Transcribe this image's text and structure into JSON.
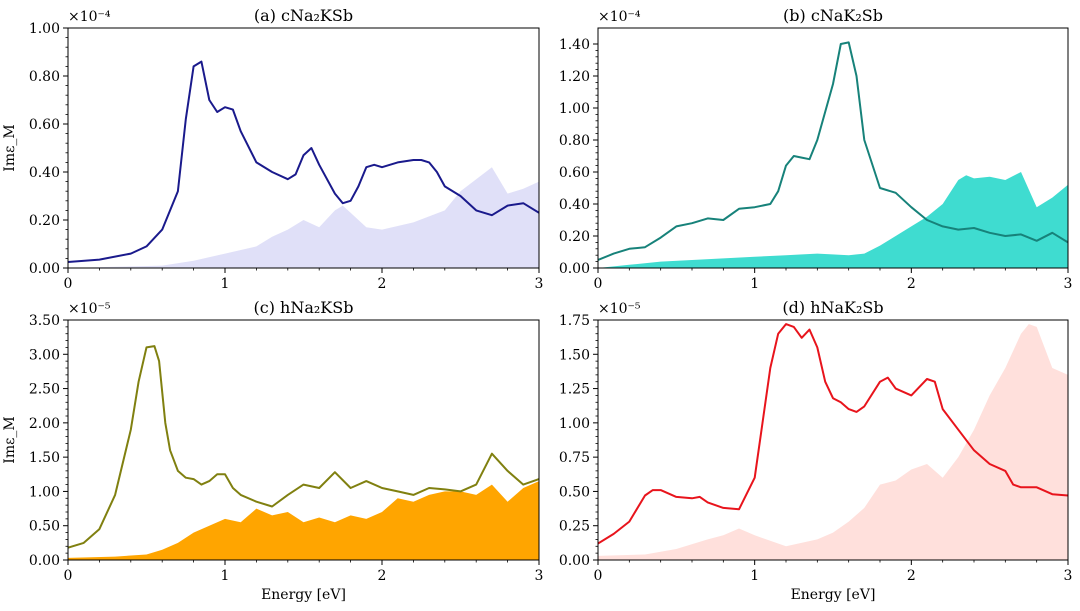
{
  "chart_data": [
    {
      "type": "line",
      "title": "(a) cNa₂KSb",
      "multiplier": "×10⁻⁴",
      "xlabel": "",
      "ylabel": "Imε_M",
      "xlim": [
        0,
        3
      ],
      "ylim": [
        0,
        1.0
      ],
      "xticks": [
        0,
        1,
        2,
        3
      ],
      "yticks": [
        0,
        0.2,
        0.4,
        0.6,
        0.8,
        1.0
      ],
      "ytick_labels": [
        "0.00",
        "0.20",
        "0.40",
        "0.60",
        "0.80",
        "1.00"
      ],
      "colors": {
        "line": "#1a1a8c",
        "fill": "#e0e0f8"
      },
      "series": [
        {
          "name": "line",
          "kind": "line",
          "x": [
            0,
            0.2,
            0.4,
            0.5,
            0.6,
            0.7,
            0.75,
            0.8,
            0.85,
            0.9,
            0.95,
            1.0,
            1.05,
            1.1,
            1.2,
            1.3,
            1.4,
            1.45,
            1.5,
            1.55,
            1.6,
            1.7,
            1.75,
            1.8,
            1.85,
            1.9,
            1.95,
            2.0,
            2.1,
            2.2,
            2.25,
            2.3,
            2.35,
            2.4,
            2.5,
            2.6,
            2.7,
            2.8,
            2.9,
            3.0
          ],
          "y": [
            0.025,
            0.035,
            0.06,
            0.09,
            0.16,
            0.32,
            0.62,
            0.84,
            0.86,
            0.7,
            0.65,
            0.67,
            0.66,
            0.57,
            0.44,
            0.4,
            0.37,
            0.39,
            0.47,
            0.5,
            0.43,
            0.31,
            0.27,
            0.28,
            0.34,
            0.42,
            0.43,
            0.42,
            0.44,
            0.45,
            0.45,
            0.44,
            0.4,
            0.34,
            0.3,
            0.24,
            0.22,
            0.26,
            0.27,
            0.23
          ]
        },
        {
          "name": "fill",
          "kind": "area",
          "x": [
            0,
            0.3,
            0.6,
            0.8,
            1.0,
            1.2,
            1.3,
            1.4,
            1.5,
            1.6,
            1.7,
            1.75,
            1.8,
            1.9,
            2.0,
            2.2,
            2.4,
            2.5,
            2.6,
            2.7,
            2.8,
            2.9,
            3.0
          ],
          "y": [
            0,
            0.005,
            0.01,
            0.03,
            0.06,
            0.09,
            0.13,
            0.16,
            0.2,
            0.17,
            0.24,
            0.26,
            0.23,
            0.17,
            0.16,
            0.19,
            0.24,
            0.32,
            0.37,
            0.42,
            0.31,
            0.33,
            0.36
          ]
        }
      ]
    },
    {
      "type": "line",
      "title": "(b) cNaK₂Sb",
      "multiplier": "×10⁻⁴",
      "xlabel": "",
      "ylabel": "",
      "xlim": [
        0,
        3
      ],
      "ylim": [
        0,
        1.5
      ],
      "xticks": [
        0,
        1,
        2,
        3
      ],
      "yticks": [
        0,
        0.2,
        0.4,
        0.6,
        0.8,
        1.0,
        1.2,
        1.4
      ],
      "ytick_labels": [
        "0.00",
        "0.20",
        "0.40",
        "0.60",
        "0.80",
        "1.00",
        "1.20",
        "1.40"
      ],
      "colors": {
        "line": "#17827a",
        "fill": "#3fdcd0"
      },
      "series": [
        {
          "name": "line",
          "kind": "line",
          "x": [
            0,
            0.1,
            0.2,
            0.3,
            0.4,
            0.5,
            0.6,
            0.7,
            0.8,
            0.9,
            1.0,
            1.1,
            1.15,
            1.2,
            1.25,
            1.3,
            1.35,
            1.4,
            1.5,
            1.55,
            1.6,
            1.65,
            1.7,
            1.8,
            1.9,
            2.0,
            2.1,
            2.2,
            2.3,
            2.4,
            2.5,
            2.6,
            2.7,
            2.8,
            2.9,
            3.0
          ],
          "y": [
            0.05,
            0.09,
            0.12,
            0.13,
            0.19,
            0.26,
            0.28,
            0.31,
            0.3,
            0.37,
            0.38,
            0.4,
            0.48,
            0.64,
            0.7,
            0.69,
            0.68,
            0.8,
            1.15,
            1.4,
            1.41,
            1.2,
            0.8,
            0.5,
            0.47,
            0.38,
            0.3,
            0.26,
            0.24,
            0.25,
            0.22,
            0.2,
            0.21,
            0.17,
            0.22,
            0.16
          ]
        },
        {
          "name": "fill",
          "kind": "area",
          "x": [
            0,
            0.2,
            0.4,
            0.6,
            0.8,
            1.0,
            1.2,
            1.4,
            1.6,
            1.7,
            1.8,
            1.9,
            2.0,
            2.1,
            2.2,
            2.3,
            2.35,
            2.4,
            2.5,
            2.6,
            2.7,
            2.8,
            2.9,
            3.0
          ],
          "y": [
            0,
            0.02,
            0.04,
            0.05,
            0.06,
            0.07,
            0.08,
            0.09,
            0.08,
            0.09,
            0.14,
            0.2,
            0.26,
            0.32,
            0.4,
            0.55,
            0.58,
            0.56,
            0.57,
            0.55,
            0.6,
            0.38,
            0.44,
            0.52
          ]
        }
      ]
    },
    {
      "type": "line",
      "title": "(c) hNa₂KSb",
      "multiplier": "×10⁻⁵",
      "xlabel": "Energy [eV]",
      "ylabel": "Imε_M",
      "xlim": [
        0,
        3
      ],
      "ylim": [
        0,
        3.5
      ],
      "xticks": [
        0,
        1,
        2,
        3
      ],
      "yticks": [
        0,
        0.5,
        1.0,
        1.5,
        2.0,
        2.5,
        3.0,
        3.5
      ],
      "ytick_labels": [
        "0.00",
        "0.50",
        "1.00",
        "1.50",
        "2.00",
        "2.50",
        "3.00",
        "3.50"
      ],
      "colors": {
        "line": "#808010",
        "fill": "#ffa500"
      },
      "series": [
        {
          "name": "line",
          "kind": "line",
          "x": [
            0,
            0.1,
            0.2,
            0.3,
            0.4,
            0.45,
            0.5,
            0.55,
            0.58,
            0.62,
            0.65,
            0.7,
            0.75,
            0.8,
            0.85,
            0.9,
            0.95,
            1.0,
            1.05,
            1.1,
            1.2,
            1.3,
            1.4,
            1.5,
            1.6,
            1.7,
            1.8,
            1.9,
            2.0,
            2.1,
            2.2,
            2.3,
            2.4,
            2.5,
            2.6,
            2.7,
            2.8,
            2.9,
            3.0
          ],
          "y": [
            0.18,
            0.25,
            0.45,
            0.95,
            1.9,
            2.6,
            3.1,
            3.12,
            2.9,
            2.0,
            1.6,
            1.3,
            1.2,
            1.18,
            1.1,
            1.15,
            1.25,
            1.25,
            1.05,
            0.95,
            0.85,
            0.78,
            0.95,
            1.1,
            1.05,
            1.28,
            1.05,
            1.15,
            1.05,
            1.0,
            0.95,
            1.05,
            1.03,
            1.0,
            1.1,
            1.55,
            1.3,
            1.1,
            1.18
          ]
        },
        {
          "name": "fill",
          "kind": "area",
          "x": [
            0,
            0.3,
            0.5,
            0.6,
            0.7,
            0.8,
            0.9,
            1.0,
            1.1,
            1.2,
            1.3,
            1.4,
            1.5,
            1.6,
            1.7,
            1.8,
            1.9,
            2.0,
            2.1,
            2.2,
            2.3,
            2.4,
            2.5,
            2.6,
            2.7,
            2.8,
            2.9,
            3.0
          ],
          "y": [
            0.03,
            0.05,
            0.08,
            0.15,
            0.25,
            0.4,
            0.5,
            0.6,
            0.55,
            0.75,
            0.65,
            0.7,
            0.55,
            0.62,
            0.55,
            0.65,
            0.6,
            0.7,
            0.9,
            0.85,
            0.95,
            1.0,
            1.0,
            0.95,
            1.1,
            0.85,
            1.05,
            1.15
          ]
        }
      ]
    },
    {
      "type": "line",
      "title": "(d) hNaK₂Sb",
      "multiplier": "×10⁻⁵",
      "xlabel": "Energy [eV]",
      "ylabel": "",
      "xlim": [
        0,
        3
      ],
      "ylim": [
        0,
        1.75
      ],
      "xticks": [
        0,
        1,
        2,
        3
      ],
      "yticks": [
        0,
        0.25,
        0.5,
        0.75,
        1.0,
        1.25,
        1.5,
        1.75
      ],
      "ytick_labels": [
        "0.00",
        "0.25",
        "0.50",
        "0.75",
        "1.00",
        "1.25",
        "1.50",
        "1.75"
      ],
      "colors": {
        "line": "#e8141c",
        "fill": "#ffe0dc"
      },
      "series": [
        {
          "name": "line",
          "kind": "line",
          "x": [
            0,
            0.1,
            0.2,
            0.3,
            0.35,
            0.4,
            0.5,
            0.6,
            0.65,
            0.7,
            0.8,
            0.9,
            1.0,
            1.05,
            1.1,
            1.15,
            1.2,
            1.25,
            1.3,
            1.35,
            1.4,
            1.45,
            1.5,
            1.55,
            1.6,
            1.65,
            1.7,
            1.8,
            1.85,
            1.9,
            2.0,
            2.1,
            2.15,
            2.2,
            2.3,
            2.4,
            2.5,
            2.6,
            2.65,
            2.7,
            2.8,
            2.9,
            3.0
          ],
          "y": [
            0.12,
            0.19,
            0.28,
            0.47,
            0.51,
            0.51,
            0.46,
            0.45,
            0.46,
            0.42,
            0.38,
            0.37,
            0.6,
            1.0,
            1.4,
            1.65,
            1.72,
            1.7,
            1.62,
            1.68,
            1.55,
            1.3,
            1.18,
            1.15,
            1.1,
            1.08,
            1.12,
            1.3,
            1.33,
            1.25,
            1.2,
            1.32,
            1.3,
            1.1,
            0.95,
            0.8,
            0.7,
            0.65,
            0.55,
            0.53,
            0.53,
            0.48,
            0.47
          ]
        },
        {
          "name": "fill",
          "kind": "area",
          "x": [
            0,
            0.3,
            0.5,
            0.7,
            0.8,
            0.9,
            1.0,
            1.2,
            1.4,
            1.5,
            1.6,
            1.7,
            1.8,
            1.9,
            2.0,
            2.1,
            2.2,
            2.3,
            2.4,
            2.5,
            2.6,
            2.7,
            2.75,
            2.8,
            2.9,
            3.0
          ],
          "y": [
            0.03,
            0.04,
            0.08,
            0.15,
            0.18,
            0.23,
            0.18,
            0.1,
            0.15,
            0.2,
            0.28,
            0.38,
            0.55,
            0.58,
            0.66,
            0.7,
            0.6,
            0.75,
            0.95,
            1.2,
            1.4,
            1.65,
            1.72,
            1.7,
            1.4,
            1.35
          ]
        }
      ]
    }
  ]
}
